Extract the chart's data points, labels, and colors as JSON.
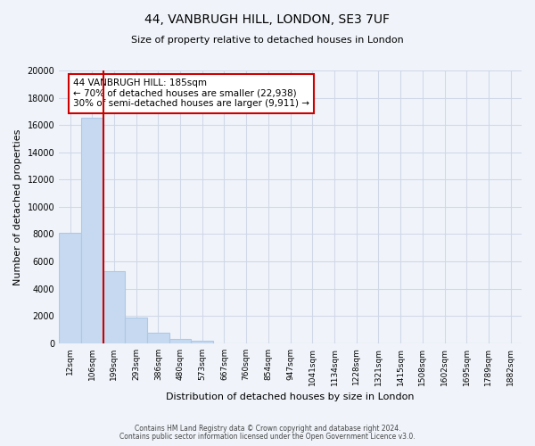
{
  "title": "44, VANBRUGH HILL, LONDON, SE3 7UF",
  "subtitle": "Size of property relative to detached houses in London",
  "xlabel": "Distribution of detached houses by size in London",
  "ylabel": "Number of detached properties",
  "bar_values": [
    8100,
    16500,
    5300,
    1850,
    750,
    300,
    200,
    0,
    0,
    0,
    0,
    0,
    0,
    0,
    0,
    0,
    0,
    0,
    0,
    0,
    0
  ],
  "bin_labels": [
    "12sqm",
    "106sqm",
    "199sqm",
    "293sqm",
    "386sqm",
    "480sqm",
    "573sqm",
    "667sqm",
    "760sqm",
    "854sqm",
    "947sqm",
    "1041sqm",
    "1134sqm",
    "1228sqm",
    "1321sqm",
    "1415sqm",
    "1508sqm",
    "1602sqm",
    "1695sqm",
    "1789sqm",
    "1882sqm"
  ],
  "bar_color": "#c6d9f0",
  "bar_edgecolor": "#aec8e8",
  "marker_color": "#cc0000",
  "marker_label": "44 VANBRUGH HILL: 185sqm",
  "annotation_line1": "← 70% of detached houses are smaller (22,938)",
  "annotation_line2": "30% of semi-detached houses are larger (9,911) →",
  "annotation_box_color": "#ffffff",
  "annotation_box_edgecolor": "#cc0000",
  "ylim": [
    0,
    20000
  ],
  "yticks": [
    0,
    2000,
    4000,
    6000,
    8000,
    10000,
    12000,
    14000,
    16000,
    18000,
    20000
  ],
  "footer1": "Contains HM Land Registry data © Crown copyright and database right 2024.",
  "footer2": "Contains public sector information licensed under the Open Government Licence v3.0.",
  "grid_color": "#d0d8e8",
  "background_color": "#f0f4fa"
}
